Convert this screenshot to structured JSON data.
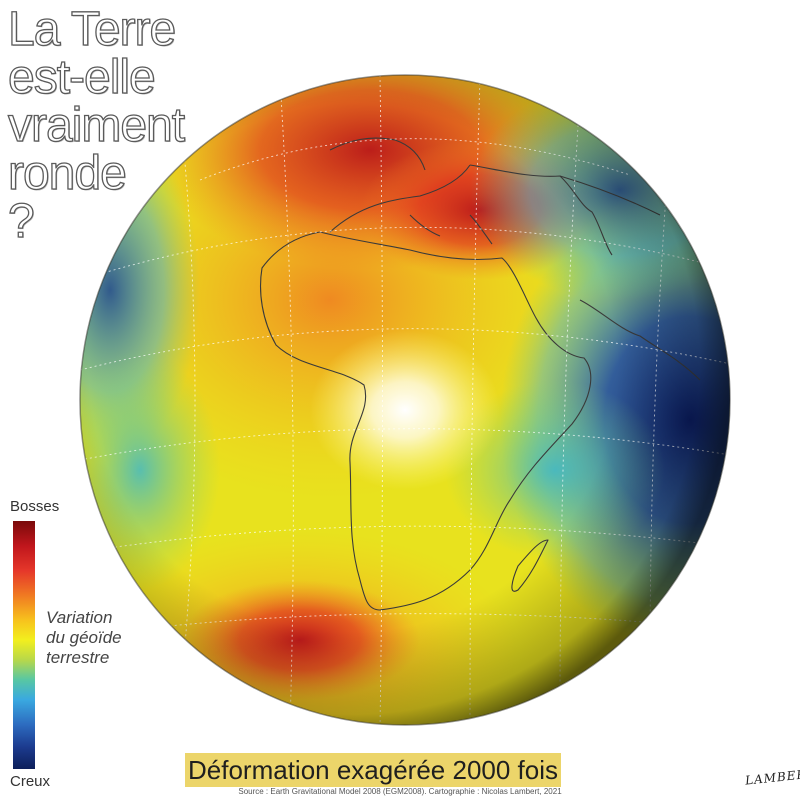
{
  "title": {
    "lines": [
      "La Terre",
      "est-elle",
      "vraiment",
      "ronde",
      "?"
    ]
  },
  "legend": {
    "top_label": "Bosses",
    "bottom_label": "Creux",
    "caption_lines": [
      "Variation",
      "du géoïde",
      "terrestre"
    ]
  },
  "subtitle": "Déformation exagérée 2000 fois",
  "source": "Source : Earth Gravitational Model 2008 (EGM2008). Cartographie : Nicolas Lambert, 2021",
  "signature": "LAMBERT",
  "colors": {
    "high": "#c0161c",
    "mid": "#f2ef1e",
    "low": "#0d1f5a",
    "subtitle_bg": "#ecd56a"
  }
}
